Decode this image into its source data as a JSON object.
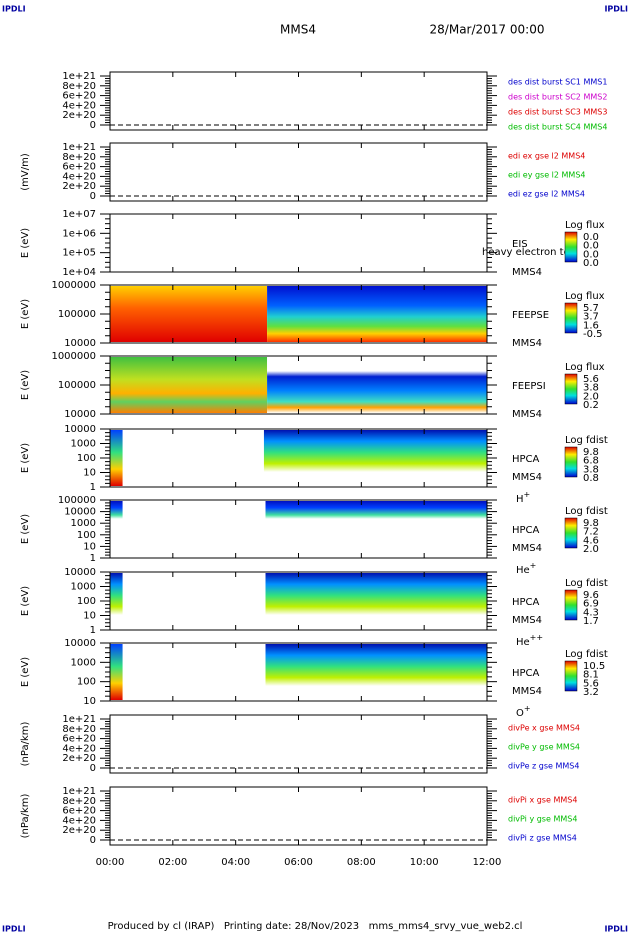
{
  "corner_marks": [
    "IPDLI",
    "IPDLI",
    "IPDLI",
    "IPDLI"
  ],
  "header": {
    "spacecraft": "MMS4",
    "date": "28/Mar/2017 00:00"
  },
  "footer": "Produced by cl (IRAP)   Printing date: 28/Nov/2023   mms_mms4_srvy_vue_web2.cl",
  "x_axis": {
    "ticks": [
      "00:00",
      "02:00",
      "04:00",
      "06:00",
      "08:00",
      "10:00",
      "12:00"
    ]
  },
  "panels": [
    {
      "kind": "line",
      "yticks": [
        "1e+21",
        "8e+20",
        "6e+20",
        "4e+20",
        "2e+20",
        "0"
      ],
      "series": [
        {
          "name": "des dist burst SC1 MMS1",
          "color": "#0000cc"
        },
        {
          "name": "des dist burst SC2 MMS2",
          "color": "#cc00cc"
        },
        {
          "name": "des dist burst SC3 MMS3",
          "color": "#dd0000"
        },
        {
          "name": "des dist burst SC4 MMS4",
          "color": "#00bb00"
        }
      ]
    },
    {
      "kind": "line",
      "ylabel": "(mV/m)",
      "yticks": [
        "1e+21",
        "8e+20",
        "6e+20",
        "4e+20",
        "2e+20",
        "0"
      ],
      "series": [
        {
          "name": "edi ex gse l2 MMS4",
          "color": "#dd0000"
        },
        {
          "name": "edi ey gse l2 MMS4",
          "color": "#00bb00"
        },
        {
          "name": "edi ez gse l2 MMS4",
          "color": "#0000cc"
        }
      ]
    },
    {
      "kind": "spectrogram",
      "ylabel": "E (eV)",
      "yticks": [
        "1e+07",
        "1e+06",
        "1e+05",
        "1e+04"
      ],
      "instrument": "EIS",
      "spacecraft": "MMS4",
      "note": "heavy electron to",
      "colorbar": {
        "title": "Log flux",
        "labels": [
          "0.0",
          "0.0",
          "0.0",
          "0.0"
        ]
      }
    },
    {
      "kind": "spectrogram",
      "ylabel": "E (eV)",
      "yticks": [
        "1000000",
        "100000",
        "10000"
      ],
      "instrument": "FEEPSE",
      "spacecraft": "MMS4",
      "colorbar": {
        "title": "Log flux",
        "labels": [
          "5.7",
          "3.7",
          "1.6",
          "-0.5"
        ]
      }
    },
    {
      "kind": "spectrogram",
      "ylabel": "E (eV)",
      "yticks": [
        "1000000",
        "100000",
        "10000"
      ],
      "instrument": "FEEPSI",
      "spacecraft": "MMS4",
      "colorbar": {
        "title": "Log flux",
        "labels": [
          "5.6",
          "3.8",
          "2.0",
          "0.2"
        ]
      }
    },
    {
      "kind": "spectrogram",
      "ylabel": "E (eV)",
      "yticks": [
        "10000",
        "1000",
        "100",
        "10",
        "1"
      ],
      "instrument": "HPCA",
      "spacecraft": "MMS4",
      "species": {
        "name": "H",
        "charge": "+"
      },
      "colorbar": {
        "title": "Log fdist",
        "labels": [
          "9.8",
          "6.8",
          "3.8",
          "0.8"
        ]
      }
    },
    {
      "kind": "spectrogram",
      "ylabel": "E (eV)",
      "yticks": [
        "100000",
        "10000",
        "1000",
        "100",
        "10",
        "1"
      ],
      "instrument": "HPCA",
      "spacecraft": "MMS4",
      "species": {
        "name": "He",
        "charge": "+"
      },
      "colorbar": {
        "title": "Log fdist",
        "labels": [
          "9.8",
          "7.2",
          "4.6",
          "2.0"
        ]
      }
    },
    {
      "kind": "spectrogram",
      "ylabel": "E (eV)",
      "yticks": [
        "10000",
        "1000",
        "100",
        "10",
        "1"
      ],
      "instrument": "HPCA",
      "spacecraft": "MMS4",
      "species": {
        "name": "He",
        "charge": "++"
      },
      "colorbar": {
        "title": "Log fdist",
        "labels": [
          "9.6",
          "6.9",
          "4.3",
          "1.7"
        ]
      }
    },
    {
      "kind": "spectrogram",
      "ylabel": "E (eV)",
      "yticks": [
        "10000",
        "1000",
        "100",
        "10"
      ],
      "instrument": "HPCA",
      "spacecraft": "MMS4",
      "species": {
        "name": "O",
        "charge": "+"
      },
      "colorbar": {
        "title": "Log fdist",
        "labels": [
          "10.5",
          "8.1",
          "5.6",
          "3.2"
        ]
      }
    },
    {
      "kind": "line",
      "ylabel": "(nPa/km)",
      "yticks": [
        "1e+21",
        "8e+20",
        "6e+20",
        "4e+20",
        "2e+20",
        "0"
      ],
      "series": [
        {
          "name": "divPe x gse MMS4",
          "color": "#dd0000"
        },
        {
          "name": "divPe y gse MMS4",
          "color": "#00bb00"
        },
        {
          "name": "divPe z gse MMS4",
          "color": "#0000cc"
        }
      ]
    },
    {
      "kind": "line",
      "ylabel": "(nPa/km)",
      "yticks": [
        "1e+21",
        "8e+20",
        "6e+20",
        "4e+20",
        "2e+20",
        "0"
      ],
      "series": [
        {
          "name": "divPi x gse MMS4",
          "color": "#dd0000"
        },
        {
          "name": "divPi y gse MMS4",
          "color": "#00bb00"
        },
        {
          "name": "divPi z gse MMS4",
          "color": "#0000cc"
        }
      ]
    }
  ]
}
